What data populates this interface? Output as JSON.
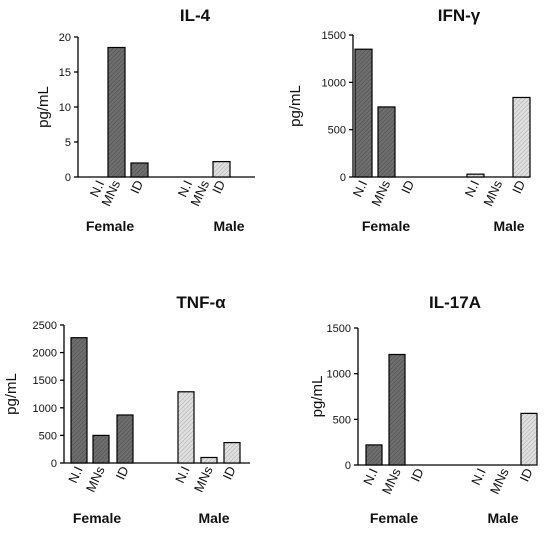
{
  "chart_data": [
    {
      "type": "bar",
      "title": "IL-4",
      "ylabel": "pg/mL",
      "ylim": [
        0,
        20
      ],
      "yticks": [
        "0",
        "5",
        "10",
        "15",
        "20"
      ],
      "categories": [
        "N.I",
        "MNs",
        "ID",
        "N.I",
        "MNs",
        "ID"
      ],
      "groups": [
        "Female",
        "Male"
      ],
      "values": [
        0,
        18.5,
        2,
        0,
        0,
        2.2
      ],
      "fills": [
        "dark",
        "dark",
        "dark",
        "light",
        "light",
        "light"
      ]
    },
    {
      "type": "bar",
      "title": "IFN-γ",
      "ylabel": "pg/mL",
      "ylim": [
        0,
        1500
      ],
      "yticks": [
        "0",
        "500",
        "1000",
        "1500"
      ],
      "categories": [
        "N.I",
        "MNs",
        "ID",
        "N.I",
        "MNs",
        "ID"
      ],
      "groups": [
        "Female",
        "Male"
      ],
      "values": [
        1350,
        740,
        0,
        30,
        0,
        840
      ],
      "fills": [
        "dark",
        "dark",
        "dark",
        "light",
        "light",
        "light"
      ]
    },
    {
      "type": "bar",
      "title": "TNF-α",
      "ylabel": "pg/mL",
      "ylim": [
        0,
        2500
      ],
      "yticks": [
        "0",
        "500",
        "1000",
        "1500",
        "2000",
        "2500"
      ],
      "categories": [
        "N.I",
        "MNs",
        "ID",
        "N.I",
        "MNs",
        "ID"
      ],
      "groups": [
        "Female",
        "Male"
      ],
      "values": [
        2270,
        500,
        870,
        1290,
        100,
        370
      ],
      "fills": [
        "dark",
        "dark",
        "dark",
        "light",
        "light",
        "light"
      ]
    },
    {
      "type": "bar",
      "title": "IL-17A",
      "ylabel": "pg/mL",
      "ylim": [
        0,
        1500
      ],
      "yticks": [
        "0",
        "500",
        "1000",
        "1500"
      ],
      "categories": [
        "N.I",
        "MNs",
        "ID",
        "N.I",
        "MNs",
        "ID"
      ],
      "groups": [
        "Female",
        "Male"
      ],
      "values": [
        220,
        1210,
        0,
        0,
        0,
        565
      ],
      "fills": [
        "dark",
        "dark",
        "dark",
        "light",
        "light",
        "light"
      ]
    }
  ],
  "colors": {
    "dark": "#6e6e6e",
    "light": "#d2d2d2",
    "axis": "#000000"
  }
}
